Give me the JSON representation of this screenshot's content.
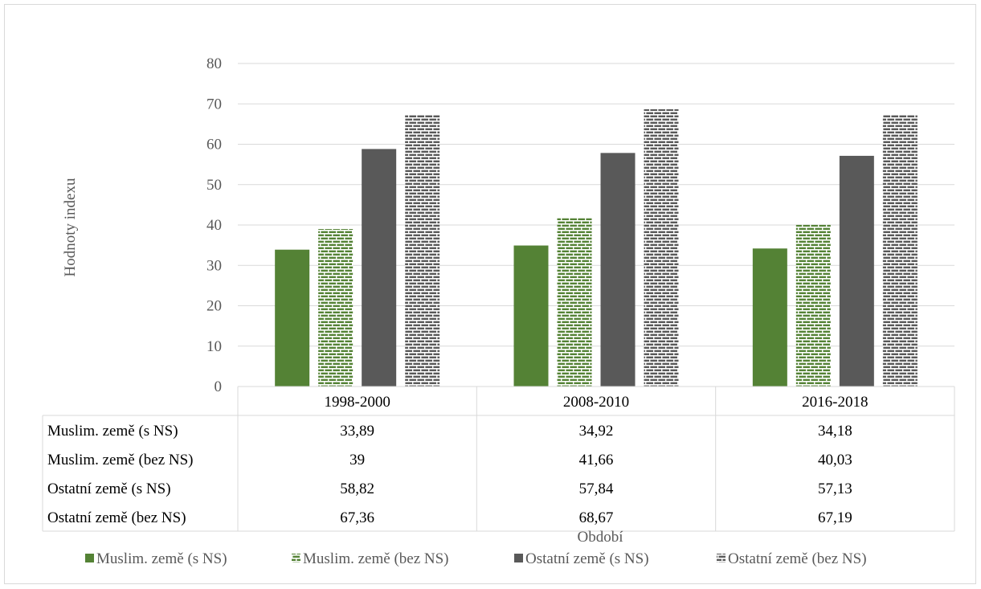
{
  "chart_data": {
    "type": "bar",
    "title": "",
    "xlabel": "Období",
    "ylabel": "Hodnoty indexu",
    "ylim": [
      0,
      80
    ],
    "yticks": [
      0,
      10,
      20,
      30,
      40,
      50,
      60,
      70,
      80
    ],
    "grid": true,
    "legend_position": "bottom",
    "data_table": true,
    "categories": [
      "1998-2000",
      "2008-2010",
      "2016-2018"
    ],
    "series": [
      {
        "name": "Muslim. země (s NS)",
        "values": [
          33.89,
          34.92,
          34.18
        ],
        "labels": [
          "33,89",
          "34,92",
          "34,18"
        ],
        "color": "#548235",
        "pattern": "solid"
      },
      {
        "name": "Muslim. země (bez NS)",
        "values": [
          39,
          41.66,
          40.03
        ],
        "labels": [
          "39",
          "41,66",
          "40,03"
        ],
        "color": "#548235",
        "pattern": "brick"
      },
      {
        "name": "Ostatní země (s NS)",
        "values": [
          58.82,
          57.84,
          57.13
        ],
        "labels": [
          "58,82",
          "57,84",
          "57,13"
        ],
        "color": "#595959",
        "pattern": "solid"
      },
      {
        "name": "Ostatní země (bez NS)",
        "values": [
          67.36,
          68.67,
          67.19
        ],
        "labels": [
          "67,36",
          "68,67",
          "67,19"
        ],
        "color": "#595959",
        "pattern": "brick"
      }
    ]
  }
}
